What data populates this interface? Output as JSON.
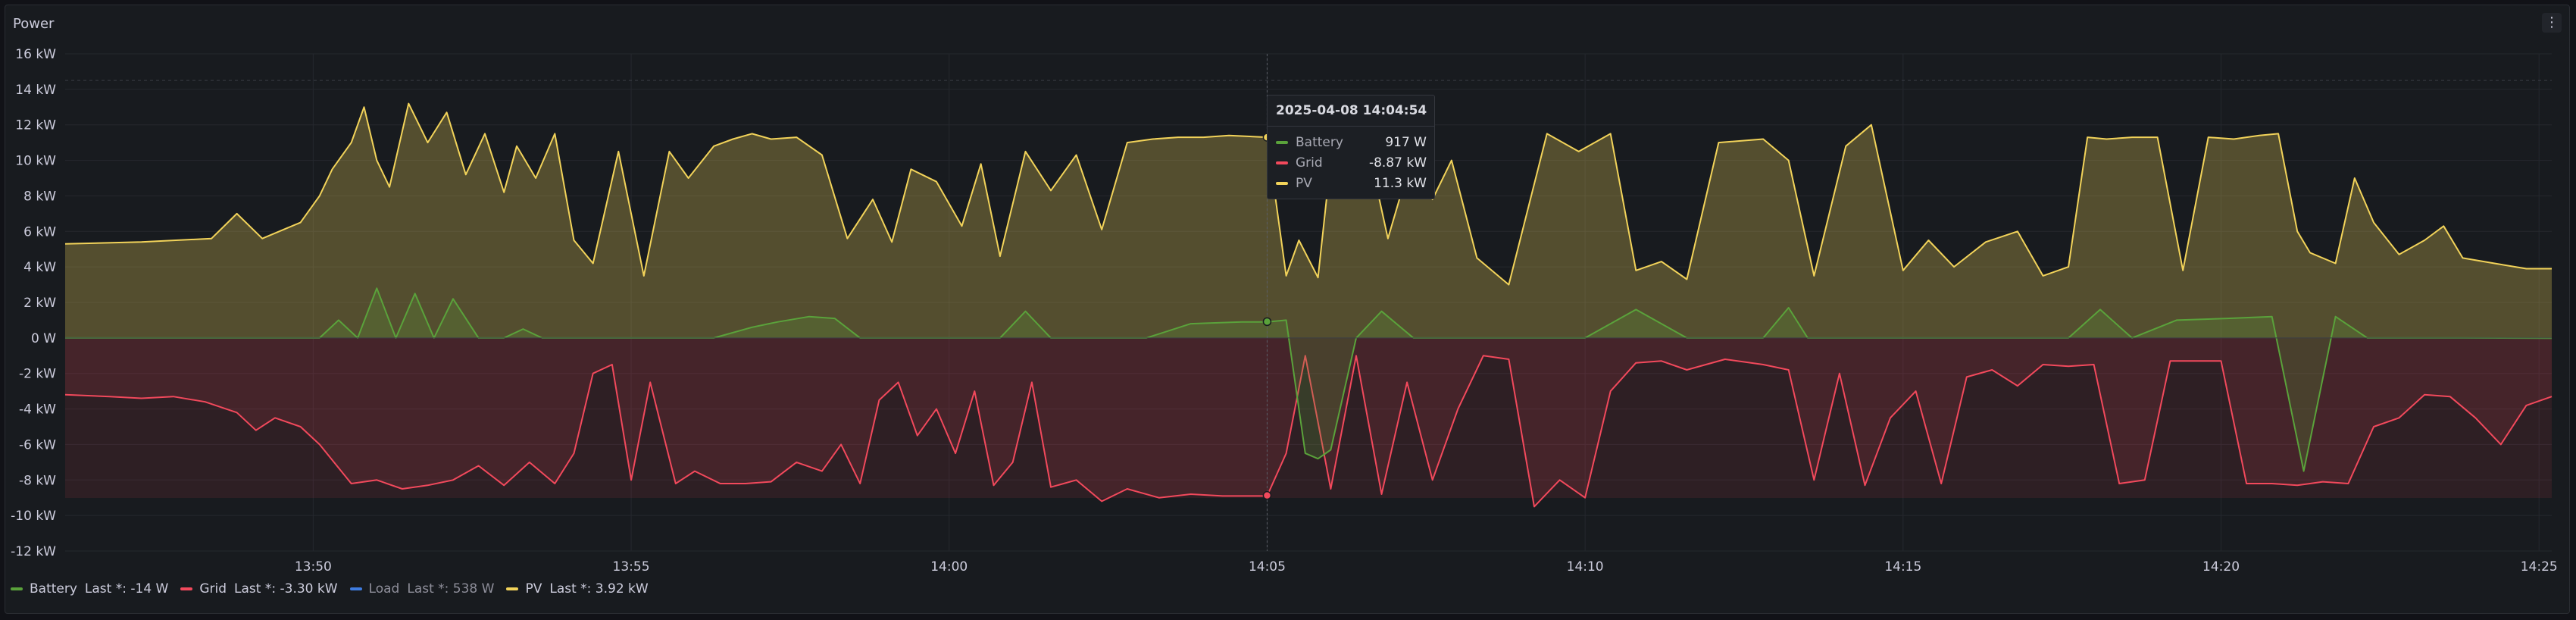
{
  "panel": {
    "title": "Power",
    "menu_icon": "vertical-dots-icon"
  },
  "colors": {
    "battery": "#5aa23b",
    "grid": "#f2495c",
    "load": "#3e7ce0",
    "pv": "#f2d35a"
  },
  "tooltip": {
    "time": "2025-04-08 14:04:54",
    "rows": [
      {
        "name": "Battery",
        "value": "917 W"
      },
      {
        "name": "Grid",
        "value": "-8.87 kW"
      },
      {
        "name": "PV",
        "value": "11.3 kW"
      }
    ]
  },
  "legend": [
    {
      "name": "Battery",
      "stat": "Last *: -14 W"
    },
    {
      "name": "Grid",
      "stat": "Last *: -3.30 kW"
    },
    {
      "name": "Load",
      "stat": "Last *: 538 W"
    },
    {
      "name": "PV",
      "stat": "Last *: 3.92 kW"
    }
  ],
  "chart_data": {
    "type": "line",
    "xlabel": "",
    "ylabel": "",
    "unit": "kW",
    "x_ticks": [
      "13:50",
      "13:55",
      "14:00",
      "14:05",
      "14:10",
      "14:15",
      "14:20",
      "14:25"
    ],
    "x_tick_minutes": [
      6.2,
      11.2,
      16.2,
      21.2,
      26.2,
      31.2,
      36.2,
      41.2
    ],
    "xlim": [
      2.3,
      41.4
    ],
    "y_ticks": [
      "16 kW",
      "14 kW",
      "12 kW",
      "10 kW",
      "8 kW",
      "6 kW",
      "4 kW",
      "2 kW",
      "0 W",
      "-2 kW",
      "-4 kW",
      "-6 kW",
      "-8 kW",
      "-10 kW",
      "-12 kW"
    ],
    "ylim": [
      -12,
      16
    ],
    "grid": true,
    "legend_position": "bottom-left",
    "hover_minute": 21.2,
    "series": [
      {
        "name": "PV",
        "x": [
          2.3,
          3.5,
          4.6,
          5.0,
          5.4,
          5.8,
          6.0,
          6.3,
          6.5,
          6.8,
          7.0,
          7.2,
          7.4,
          7.7,
          8.0,
          8.3,
          8.6,
          8.9,
          9.2,
          9.4,
          9.7,
          10.0,
          10.3,
          10.6,
          11.0,
          11.4,
          11.8,
          12.1,
          12.5,
          12.8,
          13.1,
          13.4,
          13.8,
          14.2,
          14.6,
          15.0,
          15.3,
          15.6,
          16.0,
          16.4,
          16.7,
          17.0,
          17.4,
          17.8,
          18.2,
          18.6,
          19.0,
          19.4,
          19.8,
          20.2,
          20.6,
          21.2,
          21.5,
          21.7,
          22.0,
          22.2,
          22.5,
          22.8,
          23.1,
          23.5,
          23.8,
          24.1,
          24.5,
          25.0,
          25.6,
          26.1,
          26.6,
          27.0,
          27.4,
          27.8,
          28.3,
          29.0,
          29.4,
          29.8,
          30.3,
          30.7,
          31.2,
          31.6,
          32.0,
          32.5,
          33.0,
          33.4,
          33.8,
          34.1,
          34.4,
          34.8,
          35.2,
          35.6,
          36.0,
          36.4,
          36.8,
          37.1,
          37.4,
          37.6,
          38.0,
          38.3,
          38.6,
          39.0,
          39.4,
          39.7,
          40.0,
          40.5,
          41.0,
          41.4
        ],
        "values": [
          5.3,
          5.4,
          5.6,
          7.0,
          5.6,
          6.2,
          6.5,
          8.0,
          9.5,
          11.0,
          13.0,
          10.0,
          8.5,
          13.2,
          11.0,
          12.7,
          9.2,
          11.5,
          8.2,
          10.8,
          9.0,
          11.5,
          5.5,
          4.2,
          10.5,
          3.5,
          10.5,
          9.0,
          10.8,
          11.2,
          11.5,
          11.2,
          11.3,
          10.3,
          5.6,
          7.8,
          5.4,
          9.5,
          8.8,
          6.3,
          9.8,
          4.6,
          10.5,
          8.3,
          10.3,
          6.1,
          11.0,
          11.2,
          11.3,
          11.3,
          11.4,
          11.3,
          3.5,
          5.5,
          3.4,
          10.0,
          8.5,
          10.5,
          5.6,
          10.5,
          7.8,
          10.0,
          4.5,
          3.0,
          11.5,
          10.5,
          11.5,
          3.8,
          4.3,
          3.3,
          11.0,
          11.2,
          10.0,
          3.5,
          10.8,
          12.0,
          3.8,
          5.5,
          4.0,
          5.4,
          6.0,
          3.5,
          4.0,
          11.3,
          11.2,
          11.3,
          11.3,
          3.8,
          11.3,
          11.2,
          11.4,
          11.5,
          6.0,
          4.8,
          4.2,
          9.0,
          6.5,
          4.7,
          5.5,
          6.3,
          4.5,
          4.2,
          3.9,
          3.9
        ]
      },
      {
        "name": "Battery",
        "x": [
          2.3,
          5.5,
          6.3,
          6.6,
          6.9,
          7.2,
          7.5,
          7.8,
          8.1,
          8.4,
          8.8,
          9.2,
          9.5,
          9.8,
          10.5,
          11.2,
          12.0,
          12.5,
          13.1,
          13.5,
          14.0,
          14.4,
          14.8,
          15.5,
          16.3,
          17.0,
          17.4,
          17.8,
          18.5,
          19.3,
          20.0,
          20.8,
          21.2,
          21.5,
          21.8,
          22.0,
          22.2,
          22.6,
          23.0,
          23.5,
          24.0,
          24.5,
          25.2,
          25.6,
          26.2,
          27.0,
          27.8,
          28.4,
          29.0,
          29.4,
          29.7,
          30.0,
          30.6,
          31.5,
          32.3,
          33.0,
          33.4,
          33.8,
          34.3,
          34.8,
          35.5,
          36.3,
          37.0,
          37.5,
          38.0,
          38.5,
          39.0,
          40.0,
          41.4
        ],
        "values": [
          0,
          0,
          0,
          1.0,
          0,
          2.8,
          0,
          2.5,
          0,
          2.2,
          0,
          0,
          0.5,
          0,
          0,
          0,
          0,
          0,
          0.6,
          0.9,
          1.2,
          1.1,
          0,
          0,
          0,
          0,
          1.5,
          0,
          0,
          0,
          0.8,
          0.9,
          0.9,
          1.0,
          -6.5,
          -6.8,
          -6.3,
          0,
          1.5,
          0,
          0,
          0,
          0,
          0,
          0,
          1.6,
          0,
          0,
          0,
          1.7,
          0,
          0,
          0,
          0,
          0,
          0,
          0,
          0,
          1.6,
          0,
          1.0,
          1.1,
          1.2,
          -7.5,
          1.2,
          0,
          0,
          0,
          -0.014
        ]
      },
      {
        "name": "Grid",
        "x": [
          2.3,
          3.0,
          3.5,
          4.0,
          4.5,
          5.0,
          5.3,
          5.6,
          6.0,
          6.3,
          6.8,
          7.2,
          7.6,
          8.0,
          8.4,
          8.8,
          9.2,
          9.6,
          10.0,
          10.3,
          10.6,
          10.9,
          11.2,
          11.5,
          11.9,
          12.2,
          12.6,
          13.0,
          13.4,
          13.8,
          14.2,
          14.5,
          14.8,
          15.1,
          15.4,
          15.7,
          16.0,
          16.3,
          16.6,
          16.9,
          17.2,
          17.5,
          17.8,
          18.2,
          18.6,
          19.0,
          19.5,
          20.0,
          20.5,
          21.2,
          21.5,
          21.8,
          22.2,
          22.6,
          23.0,
          23.4,
          23.8,
          24.2,
          24.6,
          25.0,
          25.4,
          25.8,
          26.2,
          26.6,
          27.0,
          27.4,
          27.8,
          28.4,
          29.0,
          29.4,
          29.8,
          30.2,
          30.6,
          31.0,
          31.4,
          31.8,
          32.2,
          32.6,
          33.0,
          33.4,
          33.8,
          34.2,
          34.6,
          35.0,
          35.4,
          35.8,
          36.2,
          36.6,
          37.0,
          37.4,
          37.8,
          38.2,
          38.6,
          39.0,
          39.4,
          39.8,
          40.2,
          40.6,
          41.0,
          41.4
        ],
        "values": [
          -3.2,
          -3.3,
          -3.4,
          -3.3,
          -3.6,
          -4.2,
          -5.2,
          -4.5,
          -5.0,
          -6.0,
          -8.2,
          -8.0,
          -8.5,
          -8.3,
          -8.0,
          -7.2,
          -8.3,
          -7.0,
          -8.2,
          -6.5,
          -2.0,
          -1.5,
          -8.0,
          -2.5,
          -8.2,
          -7.5,
          -8.2,
          -8.2,
          -8.1,
          -7.0,
          -7.5,
          -6.0,
          -8.2,
          -3.5,
          -2.5,
          -5.5,
          -4.0,
          -6.5,
          -3.0,
          -8.3,
          -7.0,
          -2.5,
          -8.4,
          -8.0,
          -9.2,
          -8.5,
          -9.0,
          -8.8,
          -8.9,
          -8.9,
          -6.5,
          -1.0,
          -8.5,
          -1.0,
          -8.8,
          -2.5,
          -8.0,
          -4.0,
          -1.0,
          -1.2,
          -9.5,
          -8.0,
          -9.0,
          -3.0,
          -1.4,
          -1.3,
          -1.8,
          -1.2,
          -1.5,
          -1.8,
          -8.0,
          -2.0,
          -8.3,
          -4.5,
          -3.0,
          -8.2,
          -2.2,
          -1.8,
          -2.7,
          -1.5,
          -1.6,
          -1.5,
          -8.2,
          -8.0,
          -1.3,
          -1.3,
          -1.3,
          -8.2,
          -8.2,
          -8.3,
          -8.1,
          -8.2,
          -5.0,
          -4.5,
          -3.2,
          -3.3,
          -4.5,
          -6.0,
          -3.8,
          -3.3
        ]
      }
    ]
  }
}
